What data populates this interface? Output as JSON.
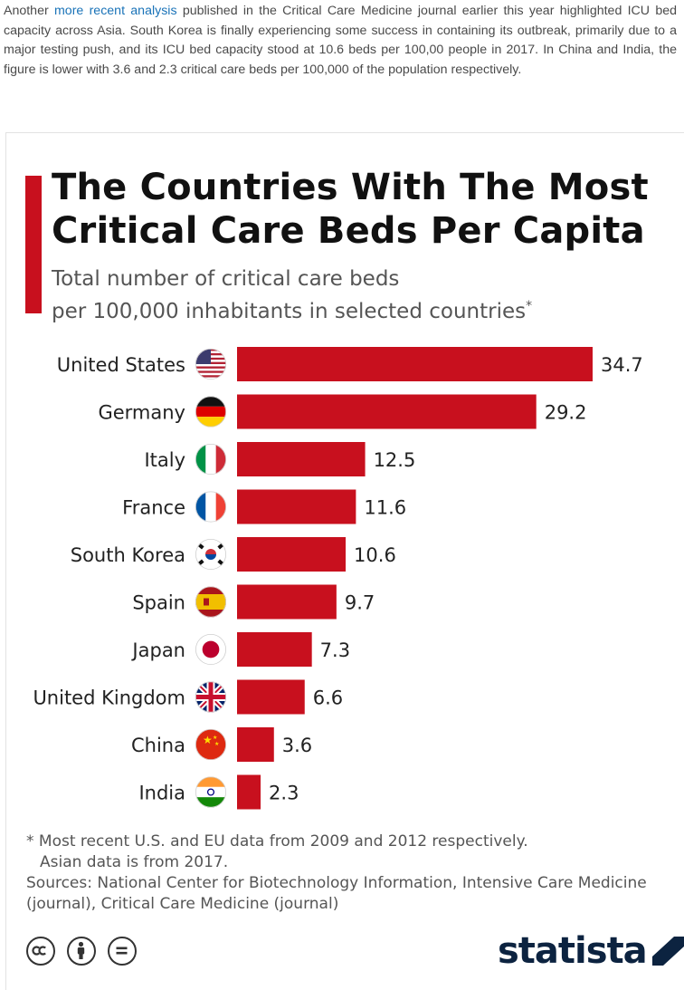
{
  "intro": {
    "before_link": "Another ",
    "link_text": "more recent analysis",
    "after_link": " published in the Critical Care Medicine journal earlier this year highlighted ICU bed capacity across Asia. South Korea is finally experiencing some success in containing its outbreak, primarily due to a major testing push, and its ICU bed capacity stood at 10.6 beds per 100,00 people in 2017. In China and India, the figure is lower with 3.6 and 2.3 critical care beds per 100,000 of the population respectively."
  },
  "chart_data": {
    "type": "bar",
    "orientation": "horizontal",
    "title": "The Countries With The Most Critical Care Beds Per Capita",
    "subtitle_line1": "Total number of critical care beds",
    "subtitle_line2": "per 100,000 inhabitants in selected countries",
    "subtitle_mark": "*",
    "categories": [
      "United States",
      "Germany",
      "Italy",
      "France",
      "South Korea",
      "Spain",
      "Japan",
      "United Kingdom",
      "China",
      "India"
    ],
    "values": [
      34.7,
      29.2,
      12.5,
      11.6,
      10.6,
      9.7,
      7.3,
      6.6,
      3.6,
      2.3
    ],
    "value_labels": [
      "34.7",
      "29.2",
      "12.5",
      "11.6",
      "10.6",
      "9.7",
      "7.3",
      "6.6",
      "3.6",
      "2.3"
    ],
    "flag_icons": [
      "us-flag-icon",
      "germany-flag-icon",
      "italy-flag-icon",
      "france-flag-icon",
      "south-korea-flag-icon",
      "spain-flag-icon",
      "japan-flag-icon",
      "uk-flag-icon",
      "china-flag-icon",
      "india-flag-icon"
    ],
    "xlim": [
      0,
      34.7
    ],
    "grid": false,
    "legend": "none",
    "bar_color": "#c8101e"
  },
  "footnote": {
    "line1": "* Most recent U.S. and EU data from 2009 and 2012 respectively.",
    "line2": "Asian data is from 2017.",
    "sources": "Sources: National Center for Biotechnology Information, Intensive Care Medicine (journal), Critical Care Medicine (journal)"
  },
  "license_icons": [
    "cc-icon",
    "attribution-icon",
    "no-derivatives-icon"
  ],
  "brand": {
    "name": "statista",
    "color": "#0c2340"
  },
  "colors": {
    "accent": "#c8101e",
    "link": "#1a73b8",
    "title": "#111111",
    "muted": "#555555"
  }
}
